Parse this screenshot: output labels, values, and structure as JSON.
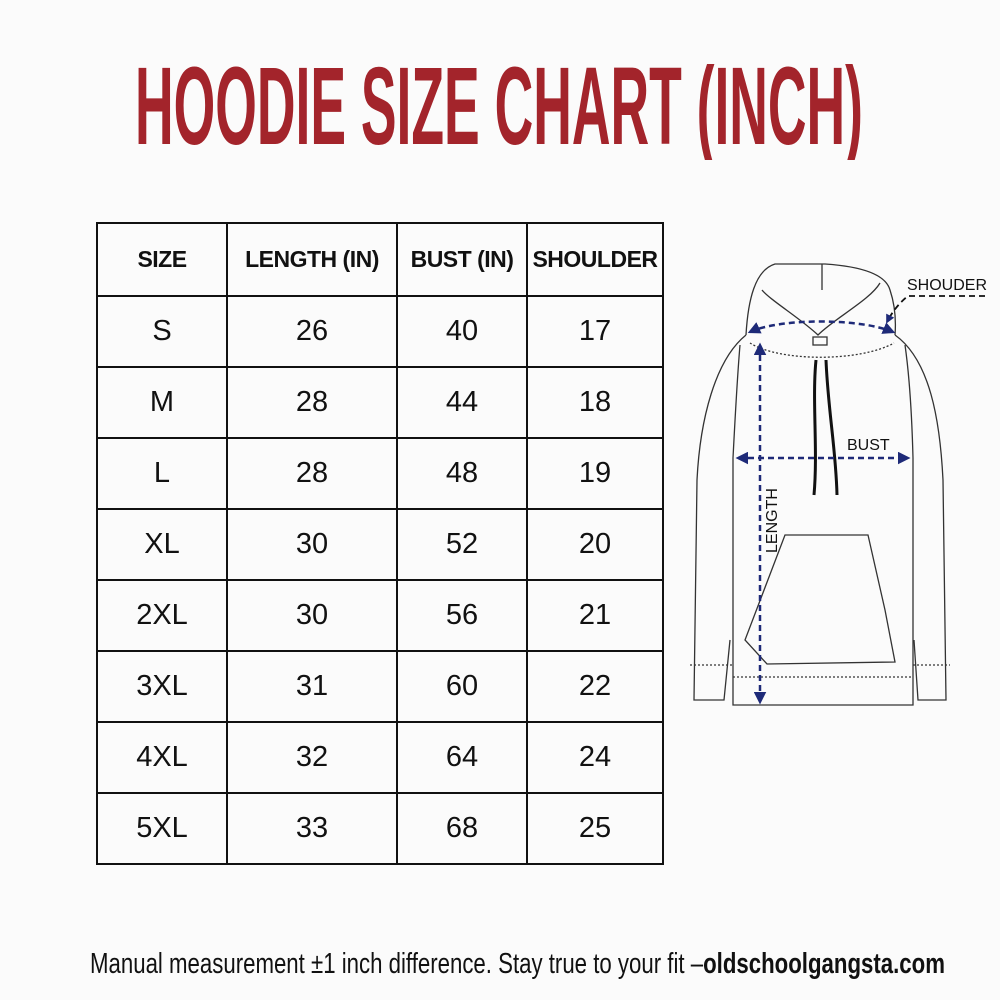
{
  "title": "HOODIE SIZE CHART (INCH)",
  "table": {
    "headers": [
      "SIZE",
      "LENGTH (IN)",
      "BUST (IN)",
      "SHOULDER"
    ],
    "rows": [
      [
        "S",
        "26",
        "40",
        "17"
      ],
      [
        "M",
        "28",
        "44",
        "18"
      ],
      [
        "L",
        "28",
        "48",
        "19"
      ],
      [
        "XL",
        "30",
        "52",
        "20"
      ],
      [
        "2XL",
        "30",
        "56",
        "21"
      ],
      [
        "3XL",
        "31",
        "60",
        "22"
      ],
      [
        "4XL",
        "32",
        "64",
        "24"
      ],
      [
        "5XL",
        "33",
        "68",
        "25"
      ]
    ]
  },
  "diagram": {
    "shoulder_label": "SHOUDER",
    "bust_label": "BUST",
    "length_label": "LENGTH"
  },
  "footer": {
    "note": "Manual measurement ±1 inch difference. Stay true to your fit –",
    "site": "oldschoolgangsta.com"
  },
  "colors": {
    "title": "#a3242b",
    "arrows": "#1e2a78"
  }
}
